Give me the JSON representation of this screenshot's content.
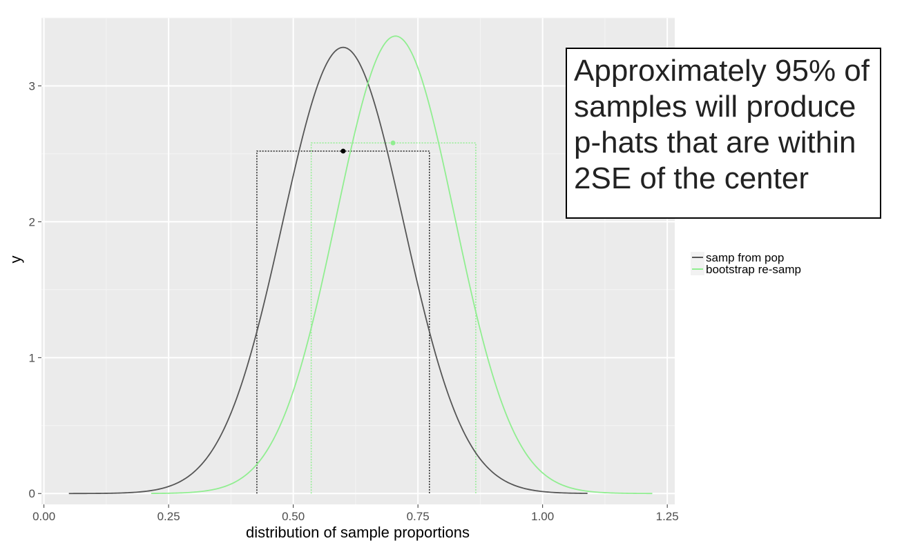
{
  "chart_data": {
    "type": "line",
    "title": "",
    "xlabel": "distribution of sample proportions",
    "ylabel": "y",
    "xlim": [
      -0.005,
      1.265
    ],
    "ylim": [
      -0.08,
      3.5
    ],
    "x_ticks": [
      0.0,
      0.25,
      0.5,
      0.75,
      1.0,
      1.25
    ],
    "x_tick_labels": [
      "0.00",
      "0.25",
      "0.50",
      "0.75",
      "1.00",
      "1.25"
    ],
    "y_ticks": [
      0,
      1,
      2,
      3
    ],
    "y_tick_labels": [
      "0",
      "1",
      "2",
      "3"
    ],
    "grid": true,
    "legend_position": "right",
    "series": [
      {
        "name": "samp from pop",
        "color": "#555555",
        "mean": 0.6,
        "sd": 0.1215,
        "x_range": [
          0.05,
          1.09
        ],
        "interval": {
          "lower": 0.427,
          "upper": 0.773,
          "height": 2.52,
          "center": 0.6
        }
      },
      {
        "name": "bootstrap re-samp",
        "color": "#90ee90",
        "mean": 0.705,
        "sd": 0.1185,
        "x_range": [
          0.215,
          1.22
        ],
        "interval": {
          "lower": 0.536,
          "upper": 0.866,
          "height": 2.58,
          "center": 0.7
        }
      }
    ],
    "annotations": [
      {
        "lines": [
          "Approximately 95% of",
          "samples will produce",
          "p-hats that are within",
          "2SE of the center"
        ]
      }
    ]
  }
}
